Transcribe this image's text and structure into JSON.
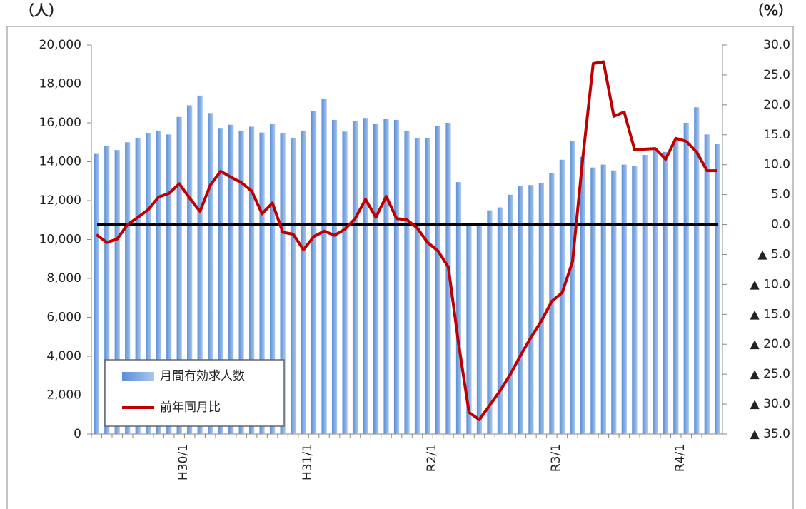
{
  "chart_data": {
    "type": "bar_line",
    "y_unit": "（人）",
    "y2_unit": "（%）",
    "categories": [
      null,
      null,
      null,
      null,
      null,
      null,
      null,
      null,
      "H30/1",
      null,
      null,
      null,
      null,
      null,
      null,
      null,
      null,
      null,
      null,
      null,
      "H31/1",
      null,
      null,
      null,
      null,
      null,
      null,
      null,
      null,
      null,
      null,
      null,
      "R2/1",
      null,
      null,
      null,
      null,
      null,
      null,
      null,
      null,
      null,
      null,
      null,
      "R3/1",
      null,
      null,
      null,
      null,
      null,
      null,
      null,
      null,
      null,
      null,
      null,
      "R4/1",
      null,
      null,
      null,
      null
    ],
    "series": [
      {
        "name": "月間有効求人数",
        "type": "bar",
        "color": "#5b8fd6",
        "values": [
          14400,
          14800,
          14600,
          15000,
          15200,
          15450,
          15600,
          15400,
          16300,
          16900,
          17400,
          16500,
          15700,
          15900,
          15600,
          15800,
          15500,
          15950,
          15450,
          15200,
          15600,
          16600,
          17250,
          16150,
          15550,
          16100,
          16250,
          15950,
          16200,
          16150,
          15600,
          15200,
          15200,
          15850,
          16000,
          12950,
          10750,
          10800,
          11500,
          11650,
          12300,
          12750,
          12800,
          12900,
          13400,
          14100,
          15050,
          14250,
          13700,
          13850,
          13550,
          13850,
          13800,
          14350,
          14600,
          14500,
          15150,
          16000,
          16800,
          15400,
          14900
        ]
      },
      {
        "name": "前年同月比",
        "type": "line",
        "axis": "y2",
        "color": "#c00000",
        "values": [
          -1.7,
          -3.0,
          -2.4,
          0.0,
          1.2,
          2.5,
          4.6,
          5.2,
          6.8,
          4.4,
          2.2,
          6.6,
          8.9,
          7.9,
          7.0,
          5.6,
          1.8,
          3.6,
          -1.3,
          -1.6,
          -4.2,
          -2.0,
          -1.1,
          -1.8,
          -0.8,
          1.0,
          4.2,
          1.2,
          4.7,
          1.0,
          0.8,
          -0.6,
          -3.0,
          -4.4,
          -7.1,
          -20.0,
          -31.4,
          -32.6,
          -30.2,
          -27.8,
          -25.0,
          -21.8,
          -18.8,
          -16.1,
          -12.8,
          -11.4,
          -6.2,
          11.2,
          26.9,
          27.2,
          18.1,
          18.8,
          12.5,
          12.6,
          12.7,
          10.9,
          14.4,
          13.9,
          12.1,
          9.0,
          9.0
        ]
      }
    ],
    "ylim": [
      0,
      20000
    ],
    "yticks": [
      0,
      {
        "value": 2000,
        "label": "2,000"
      },
      {
        "value": 4000,
        "label": "4,000"
      },
      {
        "value": 6000,
        "label": "6,000"
      },
      {
        "value": 8000,
        "label": "8,000"
      },
      {
        "value": 10000,
        "label": "10,000"
      },
      {
        "value": 12000,
        "label": "12,000"
      },
      {
        "value": 14000,
        "label": "14,000"
      },
      {
        "value": 16000,
        "label": "16,000"
      },
      {
        "value": 18000,
        "label": "18,000"
      },
      {
        "value": 20000,
        "label": "20,000"
      }
    ],
    "y2lim": [
      -35,
      30
    ],
    "y2ticks": [
      {
        "value": 30,
        "label": "30.0"
      },
      {
        "value": 25,
        "label": "25.0"
      },
      {
        "value": 20,
        "label": "20.0"
      },
      {
        "value": 15,
        "label": "15.0"
      },
      {
        "value": 10,
        "label": "10.0"
      },
      {
        "value": 5,
        "label": "5.0"
      },
      {
        "value": 0,
        "label": "0.0"
      },
      {
        "value": -5,
        "label": "▲ 5.0"
      },
      {
        "value": -10,
        "label": "▲ 10.0"
      },
      {
        "value": -15,
        "label": "▲ 15.0"
      },
      {
        "value": -20,
        "label": "▲ 20.0"
      },
      {
        "value": -25,
        "label": "▲ 25.0"
      },
      {
        "value": -30,
        "label": "▲ 30.0"
      },
      {
        "value": -35,
        "label": "▲ 35.0"
      }
    ],
    "legend": "lower-left"
  }
}
